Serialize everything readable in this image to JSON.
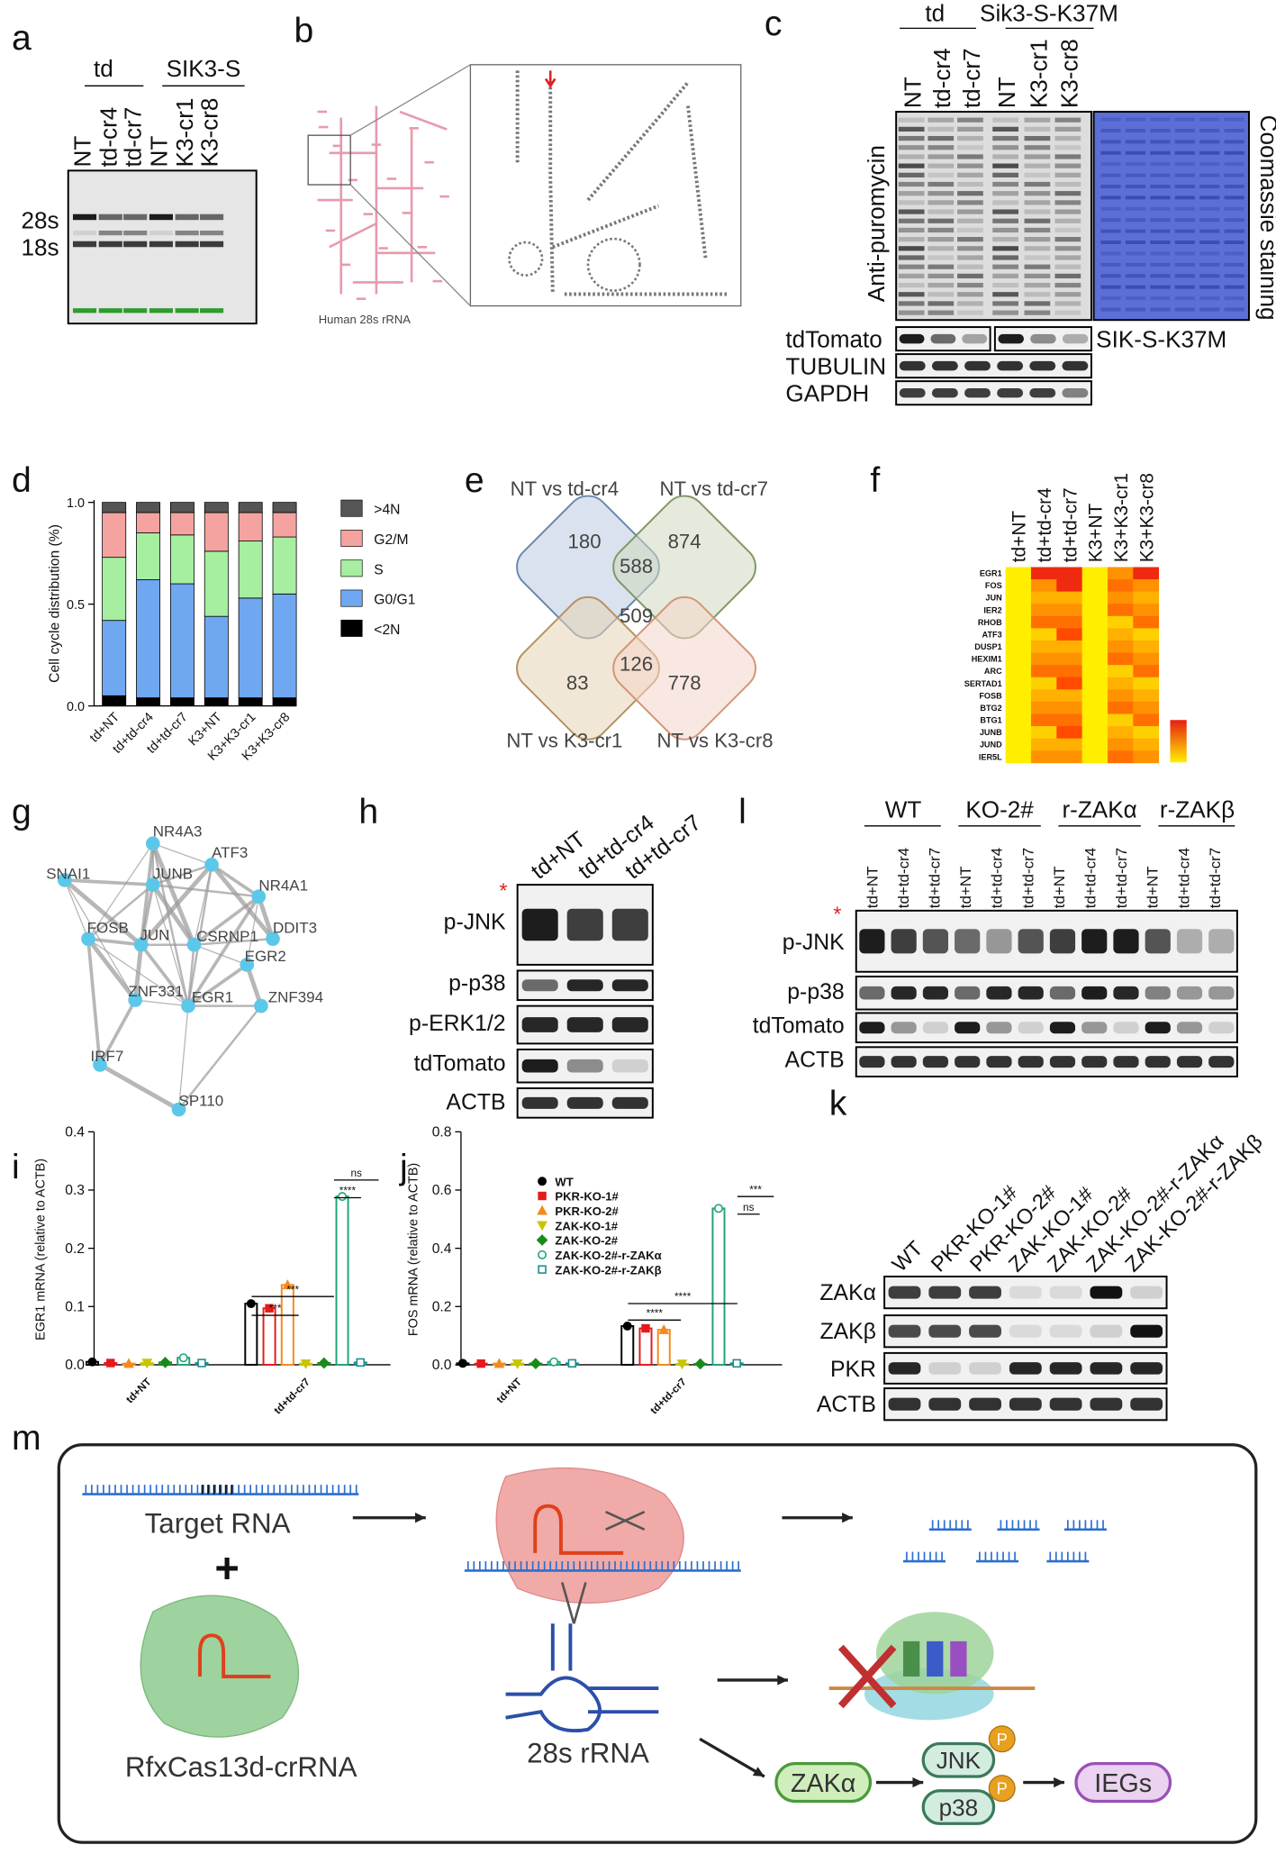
{
  "panel_labels": [
    "a",
    "b",
    "c",
    "d",
    "e",
    "f",
    "g",
    "h",
    "i",
    "j",
    "k",
    "l",
    "m"
  ],
  "a": {
    "groups": [
      "td",
      "SIK3-S"
    ],
    "lanes": [
      "NT",
      "td-cr4",
      "td-cr7",
      "NT",
      "K3-cr1",
      "K3-cr8"
    ],
    "bands": [
      "28s",
      "18s"
    ]
  },
  "b": {
    "caption": "Human 28s rRNA"
  },
  "c": {
    "groups": [
      "td",
      "Sik3-S-K37M"
    ],
    "lanes": [
      "NT",
      "td-cr4",
      "td-cr7",
      "NT",
      "K3-cr1",
      "K3-cr8"
    ],
    "main_blot": "Anti-puromycin",
    "stain": "Coomassie staining",
    "blots": [
      "tdTomato",
      "TUBULIN",
      "GAPDH"
    ],
    "construct": "SIK-S-K37M"
  },
  "d": {
    "type": "bar",
    "stacked": true,
    "y_label": "Cell cycle distribution (%)",
    "categories": [
      "td+NT",
      "td+td-cr4",
      "td+td-cr7",
      "K3+NT",
      "K3+K3-cr1",
      "K3+K3-cr8"
    ],
    "ylim": [
      0,
      1
    ],
    "yticks": [
      {
        "value": 0,
        "label": "0.0"
      },
      0.5,
      {
        "value": 1,
        "label": "1.0"
      }
    ],
    "series": [
      {
        "name": "<2N",
        "color": "#000000",
        "values": [
          0.05,
          0.04,
          0.04,
          0.04,
          0.04,
          0.04
        ]
      },
      {
        "name": "G0/G1",
        "color": "#6fa8f0",
        "values": [
          0.37,
          0.58,
          0.56,
          0.4,
          0.49,
          0.51
        ]
      },
      {
        "name": "S",
        "color": "#a6eea0",
        "values": [
          0.31,
          0.23,
          0.24,
          0.32,
          0.28,
          0.28
        ]
      },
      {
        "name": "G2/M",
        "color": "#f4a3a0",
        "values": [
          0.22,
          0.1,
          0.11,
          0.19,
          0.14,
          0.12
        ]
      },
      {
        "name": ">4N",
        "color": "#555555",
        "values": [
          0.05,
          0.05,
          0.05,
          0.05,
          0.05,
          0.05
        ]
      }
    ]
  },
  "e": {
    "sets": [
      "NT vs td-cr4",
      "NT vs td-cr7",
      "NT vs K3-cr1",
      "NT vs K3-cr8"
    ],
    "counts": [
      180,
      874,
      588,
      509,
      83,
      126,
      778
    ]
  },
  "f": {
    "columns": [
      "td+NT",
      "td+td-cr4",
      "td+td-cr7",
      "K3+NT",
      "K3+K3-cr1",
      "K3+K3-cr8"
    ],
    "rows": [
      "EGR1",
      "FOS",
      "JUN",
      "IER2",
      "RHOB",
      "ATF3",
      "DUSP1",
      "HEXIM1",
      "ARC",
      "SERTAD1",
      "FOSB",
      "BTG2",
      "BTG1",
      "JUNB",
      "JUND",
      "IER5L"
    ]
  },
  "g": {
    "nodes": [
      "NR4A3",
      "ATF3",
      "SNAI1",
      "JUNB",
      "NR4A1",
      "DDIT3",
      "FOSB",
      "JUN",
      "CSRNP1",
      "EGR2",
      "ZNF331",
      "EGR1",
      "ZNF394",
      "IRF7",
      "SP110"
    ]
  },
  "h": {
    "lanes": [
      "td+NT",
      "td+td-cr4",
      "td+td-cr7"
    ],
    "blots": [
      "p-JNK",
      "p-p38",
      "p-ERK1/2",
      "tdTomato",
      "ACTB"
    ],
    "marker": "*"
  },
  "i": {
    "type": "bar",
    "y_label": "EGR1 mRNA (relative to ACTB)",
    "categories": [
      "td+NT",
      "td+td-cr7"
    ],
    "ylim": [
      0,
      0.4
    ],
    "yticks": [
      {
        "value": 0,
        "label": "0.0"
      },
      0.1,
      0.2,
      0.3,
      0.4
    ],
    "series": [
      {
        "color": "#000000",
        "marker": "circle",
        "values": [
          0.005,
          0.105
        ]
      },
      {
        "color": "#e41a1c",
        "marker": "square",
        "values": [
          0.003,
          0.097
        ]
      },
      {
        "color": "#f28a1e",
        "marker": "triangle",
        "values": [
          0.002,
          0.137
        ]
      },
      {
        "color": "#c9c400",
        "marker": "triangle-down",
        "values": [
          0.003,
          0.002
        ]
      },
      {
        "color": "#1a8a1a",
        "marker": "diamond",
        "values": [
          0.004,
          0.003
        ]
      },
      {
        "color": "#1fa37a",
        "marker": "open-circle",
        "values": [
          0.012,
          0.289
        ]
      },
      {
        "color": "#1b8a8a",
        "marker": "open-square",
        "values": [
          0.003,
          0.004
        ]
      }
    ],
    "annotations": [
      "***",
      "***",
      "ns",
      "****"
    ]
  },
  "j": {
    "type": "bar",
    "y_label": "FOS mRNA (relative to ACTB)",
    "categories": [
      "td+NT",
      "td+td-cr7"
    ],
    "ylim": [
      0,
      0.8
    ],
    "yticks": [
      {
        "value": 0,
        "label": "0.0"
      },
      0.2,
      0.4,
      0.6,
      0.8
    ],
    "series": [
      {
        "name": "WT",
        "color": "#000000",
        "marker": "circle",
        "values": [
          0.005,
          0.133
        ]
      },
      {
        "name": "PKR-KO-1#",
        "color": "#e41a1c",
        "marker": "square",
        "values": [
          0.004,
          0.125
        ]
      },
      {
        "name": "PKR-KO-2#",
        "color": "#f28a1e",
        "marker": "triangle",
        "values": [
          0.004,
          0.12
        ]
      },
      {
        "name": "ZAK-KO-1#",
        "color": "#c9c400",
        "marker": "triangle-down",
        "values": [
          0.004,
          0.003
        ]
      },
      {
        "name": "ZAK-KO-2#",
        "color": "#1a8a1a",
        "marker": "diamond",
        "values": [
          0.004,
          0.003
        ]
      },
      {
        "name": "ZAK-KO-2#-r-ZAKα",
        "color": "#1fa37a",
        "marker": "open-circle",
        "values": [
          0.01,
          0.537
        ]
      },
      {
        "name": "ZAK-KO-2#-r-ZAKβ",
        "color": "#1b8a8a",
        "marker": "open-square",
        "values": [
          0.005,
          0.005
        ]
      }
    ],
    "annotations": [
      "****",
      "****",
      "***",
      "ns"
    ]
  },
  "k": {
    "lanes": [
      "WT",
      "PKR-KO-1#",
      "PKR-KO-2#",
      "ZAK-KO-1#",
      "ZAK-KO-2#",
      "ZAK-KO-2#-r-ZAKα",
      "ZAK-KO-2#-r-ZAKβ"
    ],
    "blots": [
      "ZAKα",
      "ZAKβ",
      "PKR",
      "ACTB"
    ]
  },
  "l": {
    "groups": [
      "WT",
      "KO-2#",
      "r-ZAKα",
      "r-ZAKβ"
    ],
    "lanes": [
      "td+NT",
      "td+td-cr4",
      "td+td-cr7",
      "td+NT",
      "td+td-cr4",
      "td+td-cr7",
      "td+NT",
      "td+td-cr4",
      "td+td-cr7",
      "td+NT",
      "td+td-cr4",
      "td+td-cr7"
    ],
    "blots": [
      "p-JNK",
      "p-p38",
      "tdTomato",
      "ACTB"
    ],
    "marker": "*"
  },
  "m": {
    "target": "Target RNA",
    "plus": "+",
    "enzyme": "RfxCas13d-crRNA",
    "rrna": "28s rRNA",
    "kinase": "ZAKα",
    "mapk": [
      "JNK",
      "p38"
    ],
    "phospho": [
      "P",
      "P"
    ],
    "output": "IEGs"
  }
}
